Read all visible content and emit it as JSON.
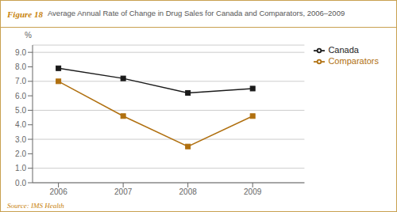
{
  "chart_data": {
    "type": "line",
    "title": "Average Annual Rate of Change in Drug Sales for Canada and Comparators, 2006–2009",
    "annotations": [
      "Figure 18",
      "Source: IMS Health"
    ],
    "y_label": "%",
    "x": [
      2006,
      2007,
      2008,
      2009
    ],
    "series": [
      {
        "name": "Canada",
        "color": "#1a1a1a",
        "marker": "square",
        "values": [
          7.9,
          7.2,
          6.2,
          6.5
        ]
      },
      {
        "name": "Comparators",
        "color": "#b07010",
        "marker": "square",
        "values": [
          7.0,
          4.6,
          2.5,
          4.6
        ]
      }
    ],
    "xlim": [
      2005.6,
      2009.8
    ],
    "xticks": [
      2006,
      2007,
      2008,
      2009
    ],
    "ylim": [
      0.0,
      9.5
    ],
    "yticks": [
      {
        "value": 0.0,
        "label": "0.0"
      },
      {
        "value": 1.0,
        "label": "1.0"
      },
      {
        "value": 2.0,
        "label": "2.0"
      },
      {
        "value": 3.0,
        "label": "3.0"
      },
      {
        "value": 4.0,
        "label": "4.0"
      },
      {
        "value": 5.0,
        "label": "5.0"
      },
      {
        "value": 6.0,
        "label": "6.0"
      },
      {
        "value": 7.0,
        "label": "7.0"
      },
      {
        "value": 8.0,
        "label": "8.0"
      },
      {
        "value": 9.0,
        "label": "9.0"
      }
    ],
    "grid": true,
    "legend": "right"
  }
}
